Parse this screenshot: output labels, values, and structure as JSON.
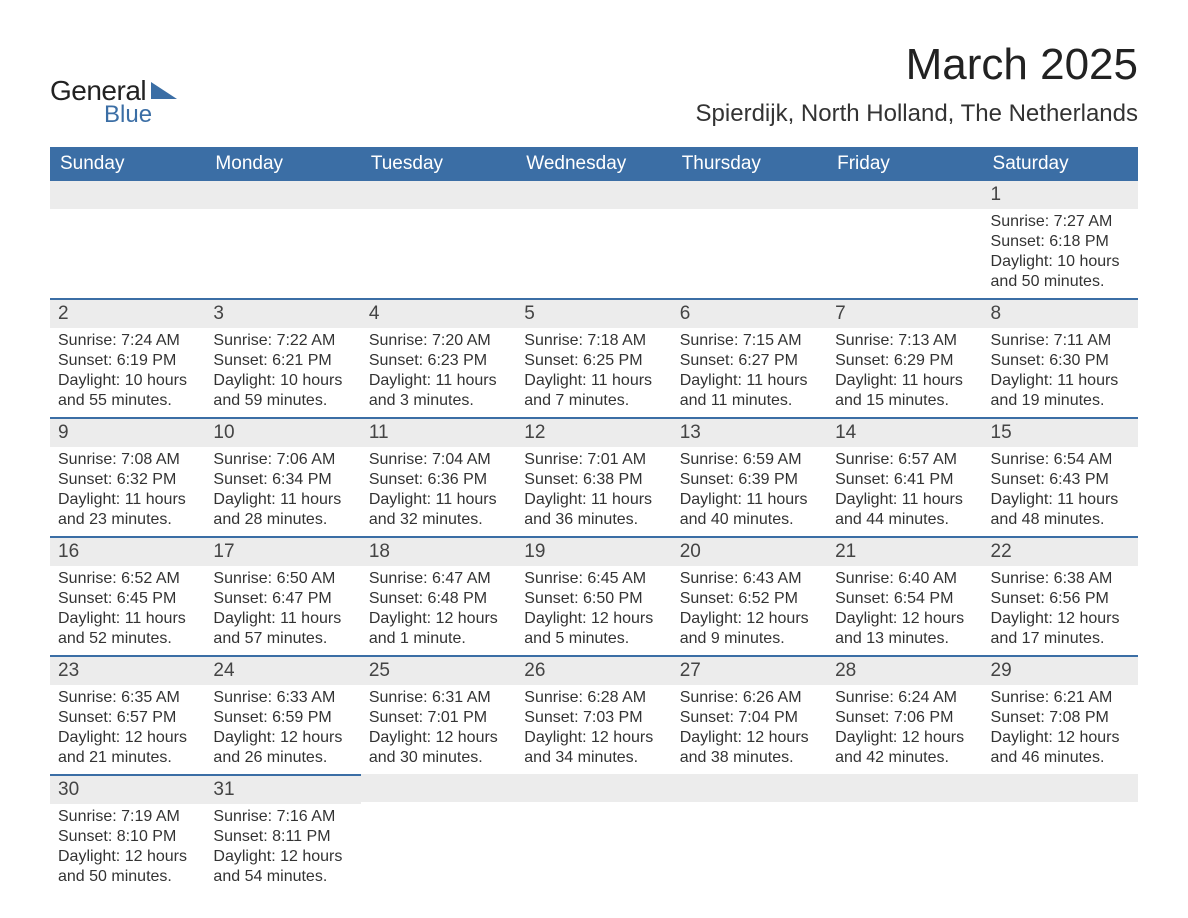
{
  "logo": {
    "general": "General",
    "blue": "Blue",
    "icon_color": "#3b6ea5"
  },
  "title": "March 2025",
  "location": "Spierdijk, North Holland, The Netherlands",
  "weekdays": [
    "Sunday",
    "Monday",
    "Tuesday",
    "Wednesday",
    "Thursday",
    "Friday",
    "Saturday"
  ],
  "colors": {
    "header_bg": "#3b6ea5",
    "header_text": "#ffffff",
    "daynum_bg": "#ececec",
    "text": "#333333",
    "row_border": "#3b6ea5"
  },
  "weeks": [
    [
      {
        "n": "",
        "lines": []
      },
      {
        "n": "",
        "lines": []
      },
      {
        "n": "",
        "lines": []
      },
      {
        "n": "",
        "lines": []
      },
      {
        "n": "",
        "lines": []
      },
      {
        "n": "",
        "lines": []
      },
      {
        "n": "1",
        "lines": [
          "Sunrise: 7:27 AM",
          "Sunset: 6:18 PM",
          "Daylight: 10 hours and 50 minutes."
        ]
      }
    ],
    [
      {
        "n": "2",
        "lines": [
          "Sunrise: 7:24 AM",
          "Sunset: 6:19 PM",
          "Daylight: 10 hours and 55 minutes."
        ]
      },
      {
        "n": "3",
        "lines": [
          "Sunrise: 7:22 AM",
          "Sunset: 6:21 PM",
          "Daylight: 10 hours and 59 minutes."
        ]
      },
      {
        "n": "4",
        "lines": [
          "Sunrise: 7:20 AM",
          "Sunset: 6:23 PM",
          "Daylight: 11 hours and 3 minutes."
        ]
      },
      {
        "n": "5",
        "lines": [
          "Sunrise: 7:18 AM",
          "Sunset: 6:25 PM",
          "Daylight: 11 hours and 7 minutes."
        ]
      },
      {
        "n": "6",
        "lines": [
          "Sunrise: 7:15 AM",
          "Sunset: 6:27 PM",
          "Daylight: 11 hours and 11 minutes."
        ]
      },
      {
        "n": "7",
        "lines": [
          "Sunrise: 7:13 AM",
          "Sunset: 6:29 PM",
          "Daylight: 11 hours and 15 minutes."
        ]
      },
      {
        "n": "8",
        "lines": [
          "Sunrise: 7:11 AM",
          "Sunset: 6:30 PM",
          "Daylight: 11 hours and 19 minutes."
        ]
      }
    ],
    [
      {
        "n": "9",
        "lines": [
          "Sunrise: 7:08 AM",
          "Sunset: 6:32 PM",
          "Daylight: 11 hours and 23 minutes."
        ]
      },
      {
        "n": "10",
        "lines": [
          "Sunrise: 7:06 AM",
          "Sunset: 6:34 PM",
          "Daylight: 11 hours and 28 minutes."
        ]
      },
      {
        "n": "11",
        "lines": [
          "Sunrise: 7:04 AM",
          "Sunset: 6:36 PM",
          "Daylight: 11 hours and 32 minutes."
        ]
      },
      {
        "n": "12",
        "lines": [
          "Sunrise: 7:01 AM",
          "Sunset: 6:38 PM",
          "Daylight: 11 hours and 36 minutes."
        ]
      },
      {
        "n": "13",
        "lines": [
          "Sunrise: 6:59 AM",
          "Sunset: 6:39 PM",
          "Daylight: 11 hours and 40 minutes."
        ]
      },
      {
        "n": "14",
        "lines": [
          "Sunrise: 6:57 AM",
          "Sunset: 6:41 PM",
          "Daylight: 11 hours and 44 minutes."
        ]
      },
      {
        "n": "15",
        "lines": [
          "Sunrise: 6:54 AM",
          "Sunset: 6:43 PM",
          "Daylight: 11 hours and 48 minutes."
        ]
      }
    ],
    [
      {
        "n": "16",
        "lines": [
          "Sunrise: 6:52 AM",
          "Sunset: 6:45 PM",
          "Daylight: 11 hours and 52 minutes."
        ]
      },
      {
        "n": "17",
        "lines": [
          "Sunrise: 6:50 AM",
          "Sunset: 6:47 PM",
          "Daylight: 11 hours and 57 minutes."
        ]
      },
      {
        "n": "18",
        "lines": [
          "Sunrise: 6:47 AM",
          "Sunset: 6:48 PM",
          "Daylight: 12 hours and 1 minute."
        ]
      },
      {
        "n": "19",
        "lines": [
          "Sunrise: 6:45 AM",
          "Sunset: 6:50 PM",
          "Daylight: 12 hours and 5 minutes."
        ]
      },
      {
        "n": "20",
        "lines": [
          "Sunrise: 6:43 AM",
          "Sunset: 6:52 PM",
          "Daylight: 12 hours and 9 minutes."
        ]
      },
      {
        "n": "21",
        "lines": [
          "Sunrise: 6:40 AM",
          "Sunset: 6:54 PM",
          "Daylight: 12 hours and 13 minutes."
        ]
      },
      {
        "n": "22",
        "lines": [
          "Sunrise: 6:38 AM",
          "Sunset: 6:56 PM",
          "Daylight: 12 hours and 17 minutes."
        ]
      }
    ],
    [
      {
        "n": "23",
        "lines": [
          "Sunrise: 6:35 AM",
          "Sunset: 6:57 PM",
          "Daylight: 12 hours and 21 minutes."
        ]
      },
      {
        "n": "24",
        "lines": [
          "Sunrise: 6:33 AM",
          "Sunset: 6:59 PM",
          "Daylight: 12 hours and 26 minutes."
        ]
      },
      {
        "n": "25",
        "lines": [
          "Sunrise: 6:31 AM",
          "Sunset: 7:01 PM",
          "Daylight: 12 hours and 30 minutes."
        ]
      },
      {
        "n": "26",
        "lines": [
          "Sunrise: 6:28 AM",
          "Sunset: 7:03 PM",
          "Daylight: 12 hours and 34 minutes."
        ]
      },
      {
        "n": "27",
        "lines": [
          "Sunrise: 6:26 AM",
          "Sunset: 7:04 PM",
          "Daylight: 12 hours and 38 minutes."
        ]
      },
      {
        "n": "28",
        "lines": [
          "Sunrise: 6:24 AM",
          "Sunset: 7:06 PM",
          "Daylight: 12 hours and 42 minutes."
        ]
      },
      {
        "n": "29",
        "lines": [
          "Sunrise: 6:21 AM",
          "Sunset: 7:08 PM",
          "Daylight: 12 hours and 46 minutes."
        ]
      }
    ],
    [
      {
        "n": "30",
        "lines": [
          "Sunrise: 7:19 AM",
          "Sunset: 8:10 PM",
          "Daylight: 12 hours and 50 minutes."
        ]
      },
      {
        "n": "31",
        "lines": [
          "Sunrise: 7:16 AM",
          "Sunset: 8:11 PM",
          "Daylight: 12 hours and 54 minutes."
        ]
      },
      {
        "n": "",
        "lines": []
      },
      {
        "n": "",
        "lines": []
      },
      {
        "n": "",
        "lines": []
      },
      {
        "n": "",
        "lines": []
      },
      {
        "n": "",
        "lines": []
      }
    ]
  ]
}
